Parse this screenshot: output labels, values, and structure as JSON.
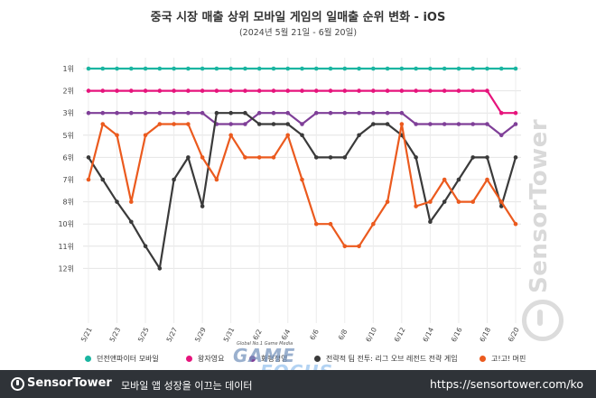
{
  "header": {
    "title": "중국 시장 매출 상위 모바일 게임의 일매출 순위 변화 - iOS",
    "subtitle": "(2024년 5월 21일 - 6월 20일)"
  },
  "chart_data": {
    "type": "line",
    "title": "중국 시장 매출 상위 모바일 게임의 일매출 순위 변화 - iOS",
    "subtitle": "(2024년 5월 21일 - 6월 20일)",
    "xlabel": "",
    "ylabel": "",
    "y_axis": "inverted rank",
    "y_ticks": [
      "1위",
      "2위",
      "3위",
      "5위",
      "6위",
      "7위",
      "8위",
      "10위",
      "11위",
      "12위"
    ],
    "y_tick_ranks": [
      1,
      2,
      3,
      5,
      6,
      7,
      8,
      10,
      11,
      12
    ],
    "x_tick_labels": [
      "5/21",
      "5/23",
      "5/25",
      "5/27",
      "5/29",
      "5/31",
      "6/2",
      "6/4",
      "6/6",
      "6/8",
      "6/10",
      "6/12",
      "6/14",
      "6/16",
      "6/18",
      "6/20"
    ],
    "x": [
      "5/21",
      "5/22",
      "5/23",
      "5/24",
      "5/25",
      "5/26",
      "5/27",
      "5/28",
      "5/29",
      "5/30",
      "5/31",
      "6/1",
      "6/2",
      "6/3",
      "6/4",
      "6/5",
      "6/6",
      "6/7",
      "6/8",
      "6/9",
      "6/10",
      "6/11",
      "6/12",
      "6/13",
      "6/14",
      "6/15",
      "6/16",
      "6/17",
      "6/18",
      "6/19",
      "6/20"
    ],
    "grid": true,
    "legend_position": "bottom",
    "series": [
      {
        "name": "던전앤파이터 모바일",
        "color": "#1ab5a1",
        "values": [
          1,
          1,
          1,
          1,
          1,
          1,
          1,
          1,
          1,
          1,
          1,
          1,
          1,
          1,
          1,
          1,
          1,
          1,
          1,
          1,
          1,
          1,
          1,
          1,
          1,
          1,
          1,
          1,
          1,
          1,
          1
        ]
      },
      {
        "name": "왕자영요",
        "color": "#e6147c",
        "values": [
          2,
          2,
          2,
          2,
          2,
          2,
          2,
          2,
          2,
          2,
          2,
          2,
          2,
          2,
          2,
          2,
          2,
          2,
          2,
          2,
          2,
          2,
          2,
          2,
          2,
          2,
          2,
          2,
          2,
          3,
          3
        ]
      },
      {
        "name": "화평정영",
        "color": "#7f3f98",
        "values": [
          3,
          3,
          3,
          3,
          3,
          3,
          3,
          3,
          3,
          4,
          4,
          4,
          3,
          3,
          3,
          4,
          3,
          3,
          3,
          3,
          3,
          3,
          3,
          4,
          4,
          4,
          4,
          4,
          4,
          5,
          4
        ]
      },
      {
        "name": "전략적 팀 전투: 리그 오브 레전드 전략 게임",
        "color": "#3a3a3a",
        "values": [
          6,
          7,
          8,
          9.8,
          11,
          12,
          7,
          6,
          8.4,
          3,
          3,
          3,
          4,
          4,
          4,
          5,
          6,
          6,
          6,
          5,
          4,
          4,
          5,
          6,
          9.8,
          8,
          7,
          6,
          6,
          8.4,
          6
        ]
      },
      {
        "name": "고!고! 머핀",
        "color": "#eb5a1e",
        "values": [
          7,
          4,
          5,
          8,
          5,
          4,
          4,
          4,
          6,
          7,
          5,
          6,
          6,
          6,
          5,
          7,
          10,
          10,
          11,
          11,
          10,
          8,
          4,
          8.4,
          8,
          7,
          8,
          8,
          7,
          8,
          10
        ]
      }
    ]
  },
  "watermark": {
    "text": "SensorTower"
  },
  "overlay_logo": {
    "small_text": "Global No.1 Game Media",
    "line1": "GAME",
    "line2": "FOCUS"
  },
  "footer": {
    "brand": "SensorTower",
    "tagline": "모바일 앱 성장을 이끄는 데이터",
    "url": "https://sensortower.com/ko"
  }
}
